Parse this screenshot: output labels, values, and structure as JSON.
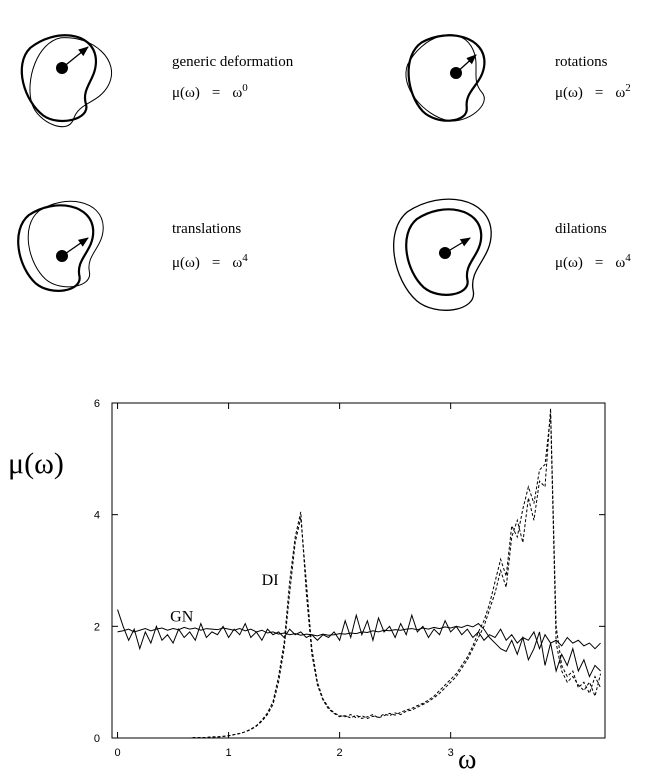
{
  "panels": [
    {
      "label": "generic deformation",
      "lhs": "μ(ω)",
      "relation": "=",
      "base": "ω",
      "exponent": "0"
    },
    {
      "label": "rotations",
      "lhs": "μ(ω)",
      "relation": "=",
      "base": "ω",
      "exponent": "2"
    },
    {
      "label": "translations",
      "lhs": "μ(ω)",
      "relation": "=",
      "base": "ω",
      "exponent": "4"
    },
    {
      "label": "dilations",
      "lhs": "μ(ω)",
      "relation": "=",
      "base": "ω",
      "exponent": "4"
    }
  ],
  "chart_data": {
    "type": "line",
    "x_label": "ω",
    "y_label": "μ(ω)",
    "xlim": [
      -0.05,
      4.39
    ],
    "ylim": [
      0,
      6
    ],
    "xticks": [
      0,
      1,
      2,
      3
    ],
    "yticks": [
      0,
      2,
      4,
      6
    ],
    "x": [
      0,
      0.05,
      0.1,
      0.15,
      0.2,
      0.25,
      0.3,
      0.35,
      0.4,
      0.45,
      0.5,
      0.55,
      0.6,
      0.65,
      0.7,
      0.75,
      0.8,
      0.85,
      0.9,
      0.95,
      1,
      1.05,
      1.1,
      1.15,
      1.2,
      1.25,
      1.3,
      1.35,
      1.4,
      1.45,
      1.5,
      1.55,
      1.6,
      1.65,
      1.7,
      1.75,
      1.8,
      1.85,
      1.9,
      1.95,
      2,
      2.05,
      2.1,
      2.15,
      2.2,
      2.25,
      2.3,
      2.35,
      2.4,
      2.45,
      2.5,
      2.55,
      2.6,
      2.65,
      2.7,
      2.75,
      2.8,
      2.85,
      2.9,
      2.95,
      3,
      3.05,
      3.1,
      3.15,
      3.2,
      3.25,
      3.3,
      3.35,
      3.4,
      3.45,
      3.5,
      3.55,
      3.6,
      3.65,
      3.7,
      3.75,
      3.8,
      3.85,
      3.9,
      3.95,
      4,
      4.05,
      4.1,
      4.15,
      4.2,
      4.25,
      4.3,
      4.35
    ],
    "series": [
      {
        "name": "GN",
        "color": "#000000",
        "dash": false,
        "values": [
          2.3,
          2.0,
          1.75,
          1.95,
          1.6,
          1.9,
          1.7,
          2.0,
          1.75,
          1.85,
          1.7,
          1.95,
          1.8,
          1.9,
          1.75,
          2.05,
          1.8,
          1.9,
          1.85,
          2.0,
          1.8,
          1.95,
          1.85,
          2.05,
          1.8,
          1.9,
          1.75,
          1.95,
          1.85,
          1.9,
          1.8,
          1.95,
          1.85,
          1.9,
          1.8,
          1.85,
          1.75,
          1.85,
          1.8,
          1.9,
          1.75,
          2.1,
          1.8,
          2.2,
          1.85,
          2.1,
          1.75,
          2.15,
          1.9,
          2.0,
          1.8,
          2.05,
          1.85,
          2.2,
          1.9,
          2.0,
          1.8,
          1.95,
          1.85,
          2.1,
          1.9,
          2.0,
          1.85,
          1.95,
          1.8,
          1.9,
          1.75,
          1.85,
          1.8,
          1.95,
          1.75,
          1.85,
          1.7,
          1.8,
          1.75,
          1.9,
          1.6,
          1.85,
          1.7,
          1.75,
          1.65,
          1.8,
          1.7,
          1.75,
          1.65,
          1.7,
          1.6,
          1.7
        ]
      },
      {
        "color": "#000000",
        "dash": false,
        "values": [
          1.9,
          1.92,
          1.95,
          1.9,
          1.93,
          1.96,
          1.92,
          1.95,
          1.97,
          1.93,
          1.96,
          1.94,
          1.98,
          1.95,
          1.97,
          1.93,
          1.96,
          1.95,
          1.94,
          1.97,
          1.95,
          1.93,
          1.96,
          1.92,
          1.95,
          1.9,
          1.93,
          1.88,
          1.9,
          1.86,
          1.88,
          1.85,
          1.87,
          1.84,
          1.86,
          1.85,
          1.83,
          1.86,
          1.84,
          1.85,
          1.87,
          1.86,
          1.88,
          1.87,
          1.9,
          1.89,
          1.92,
          1.9,
          1.93,
          1.92,
          1.94,
          1.93,
          1.95,
          1.96,
          1.94,
          1.97,
          1.95,
          1.98,
          1.96,
          1.99,
          1.97,
          2.0,
          1.98,
          2.02,
          1.99,
          2.05,
          1.95,
          1.8,
          1.7,
          1.6,
          1.55,
          1.75,
          1.5,
          1.8,
          1.4,
          1.6,
          1.9,
          1.3,
          1.7,
          1.2,
          1.5,
          1.3,
          1.6,
          1.2,
          1.4,
          1.1,
          1.3,
          1.2
        ]
      },
      {
        "name": "DI",
        "color": "#000000",
        "dash": true,
        "values": [
          0,
          0,
          0,
          0,
          0,
          0,
          0,
          0,
          0,
          0,
          0,
          0,
          0,
          0,
          0.01,
          0.01,
          0.01,
          0.02,
          0.02,
          0.03,
          0.04,
          0.06,
          0.08,
          0.11,
          0.15,
          0.21,
          0.3,
          0.42,
          0.6,
          1.0,
          1.6,
          2.6,
          3.5,
          3.95,
          2.8,
          1.6,
          1.0,
          0.7,
          0.55,
          0.45,
          0.4,
          0.38,
          0.42,
          0.36,
          0.4,
          0.35,
          0.39,
          0.37,
          0.43,
          0.4,
          0.45,
          0.42,
          0.48,
          0.5,
          0.55,
          0.6,
          0.65,
          0.72,
          0.8,
          0.9,
          1.0,
          1.1,
          1.25,
          1.4,
          1.6,
          1.8,
          2.0,
          2.3,
          2.6,
          3.0,
          2.7,
          3.6,
          3.9,
          3.5,
          4.3,
          3.9,
          4.6,
          4.5,
          5.9,
          2.0,
          1.3,
          1.1,
          1.2,
          0.9,
          1.0,
          0.8,
          1.1,
          0.9
        ]
      },
      {
        "color": "#000000",
        "dash": true,
        "values": [
          0,
          0,
          0,
          0,
          0,
          0,
          0,
          0,
          0,
          0,
          0,
          0,
          0,
          0,
          0.01,
          0.01,
          0.01,
          0.02,
          0.02,
          0.03,
          0.04,
          0.06,
          0.08,
          0.11,
          0.16,
          0.22,
          0.32,
          0.45,
          0.65,
          1.1,
          1.7,
          2.8,
          3.6,
          4.05,
          2.6,
          1.5,
          0.95,
          0.68,
          0.52,
          0.44,
          0.38,
          0.4,
          0.36,
          0.41,
          0.35,
          0.38,
          0.42,
          0.36,
          0.4,
          0.44,
          0.41,
          0.46,
          0.5,
          0.53,
          0.58,
          0.62,
          0.68,
          0.75,
          0.85,
          0.95,
          1.05,
          1.15,
          1.3,
          1.45,
          1.65,
          1.9,
          2.1,
          2.4,
          2.8,
          3.2,
          2.9,
          3.8,
          3.6,
          4.1,
          4.5,
          4.2,
          4.8,
          4.9,
          5.8,
          1.7,
          1.2,
          1.0,
          1.1,
          0.95,
          0.85,
          1.0,
          0.75,
          1.15
        ]
      }
    ]
  }
}
